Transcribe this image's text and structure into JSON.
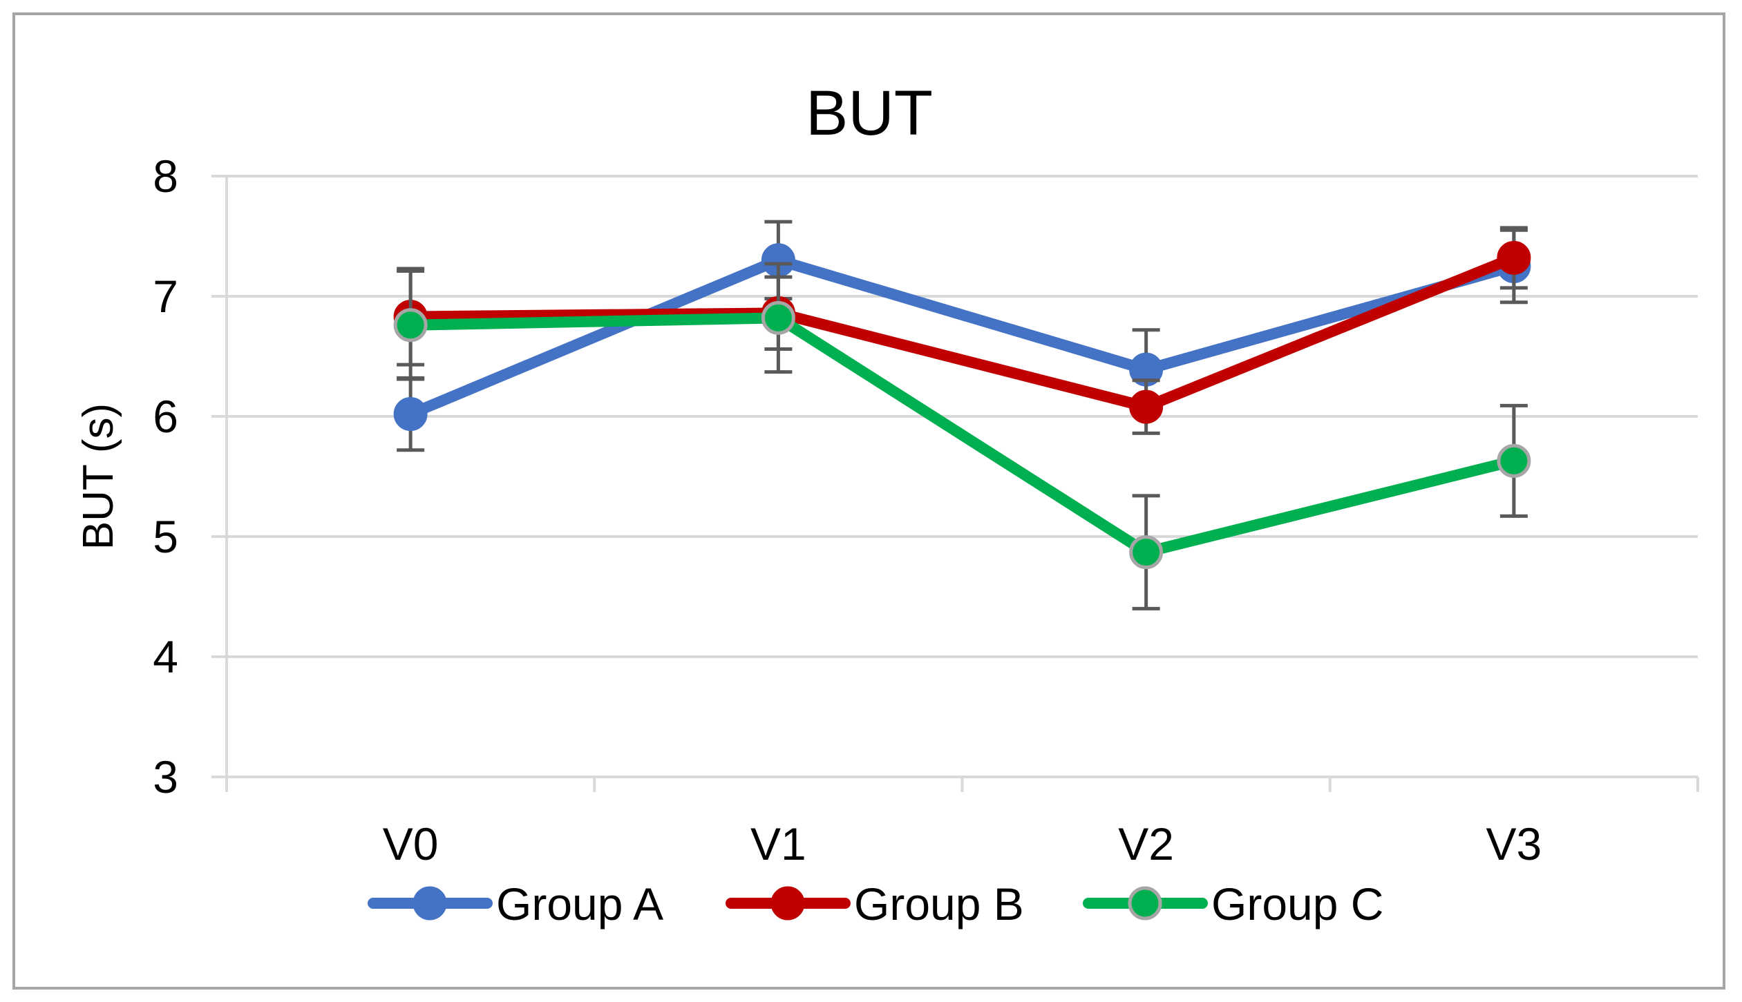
{
  "chart_data": {
    "type": "line",
    "title": "BUT",
    "xlabel": "",
    "ylabel": "BUT (s)",
    "categories": [
      "V0",
      "V1",
      "V2",
      "V3"
    ],
    "ylim": [
      3,
      8
    ],
    "yticks": [
      "3",
      "4",
      "5",
      "6",
      "7",
      "8"
    ],
    "grid": true,
    "legend_position": "bottom",
    "series": [
      {
        "name": "Group A",
        "color": "#4472C4",
        "marker_border": "#4472C4",
        "values": [
          6.02,
          7.3,
          6.39,
          7.25
        ],
        "error": [
          0.3,
          0.32,
          0.33,
          0.3
        ]
      },
      {
        "name": "Group B",
        "color": "#C00000",
        "marker_border": "#C00000",
        "values": [
          6.83,
          6.86,
          6.08,
          7.32
        ],
        "error": [
          0.4,
          0.3,
          0.22,
          0.25
        ]
      },
      {
        "name": "Group C",
        "color": "#00B050",
        "marker_border": "#A6A6A6",
        "values": [
          6.76,
          6.82,
          4.87,
          5.63
        ],
        "error": [
          0.45,
          0.45,
          0.47,
          0.46
        ]
      }
    ]
  }
}
